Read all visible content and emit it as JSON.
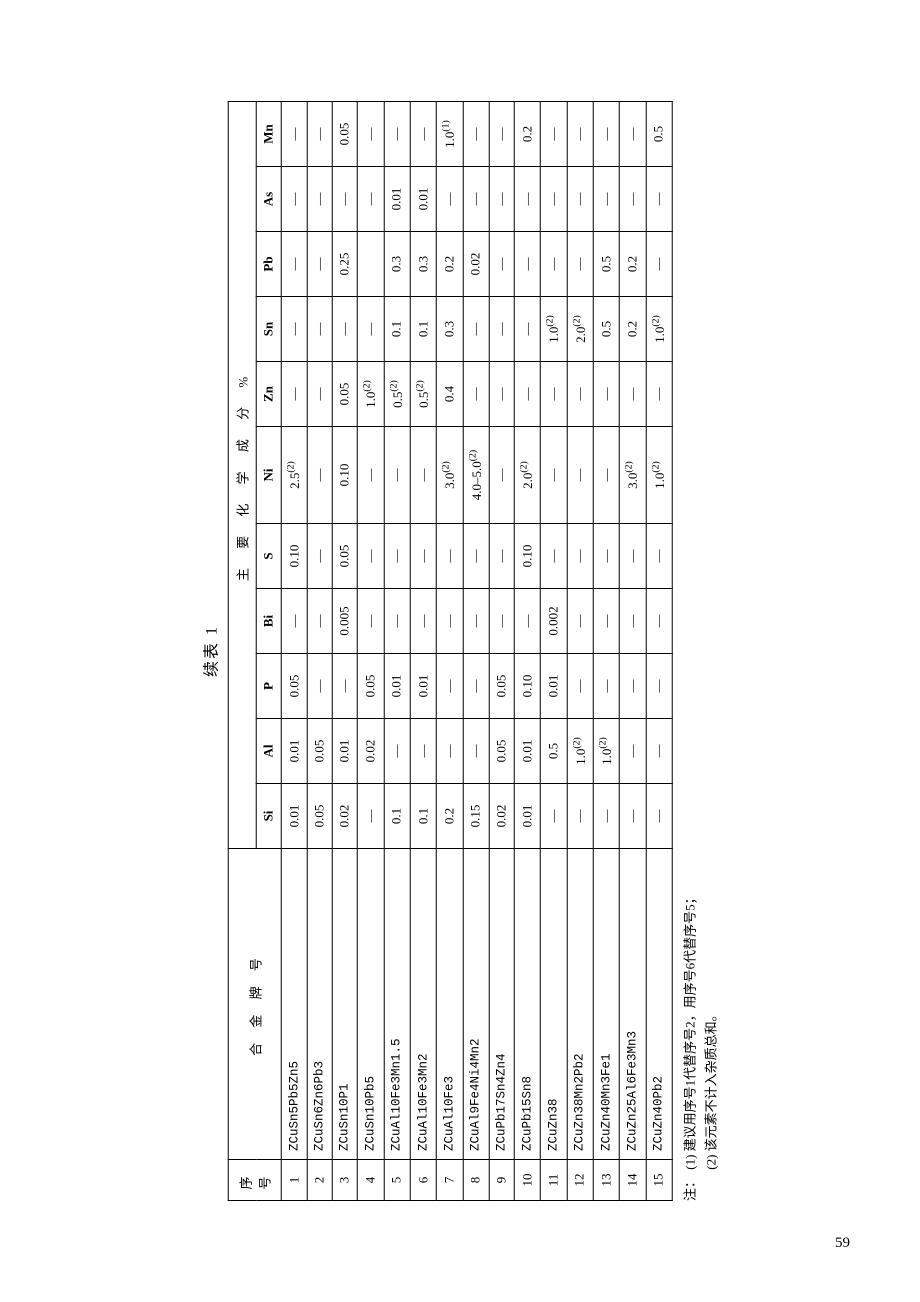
{
  "caption": "续表 1",
  "header": {
    "seq": "序 号",
    "alloy": "合 金 牌 号",
    "group": "主 要 化 学 成 分 %",
    "cols": [
      "Si",
      "Al",
      "P",
      "Bi",
      "S",
      "Ni",
      "Zn",
      "Sn",
      "Pb",
      "As",
      "Mn"
    ]
  },
  "rows": [
    {
      "n": "1",
      "alloy": "ZCuSn5Pb5Zn5",
      "c": [
        "0.01",
        "0.01",
        "0.05",
        "—",
        "0.10",
        "2.5⁽²⁾",
        "—",
        "—",
        "—",
        "—",
        "—"
      ]
    },
    {
      "n": "2",
      "alloy": "ZCuSn6Zn6Pb3",
      "c": [
        "0.05",
        "0.05",
        "—",
        "—",
        "—",
        "—",
        "—",
        "—",
        "—",
        "—",
        "—"
      ]
    },
    {
      "n": "3",
      "alloy": "ZCuSn10P1",
      "c": [
        "0.02",
        "0.01",
        "—",
        "0.005",
        "0.05",
        "0.10",
        "0.05",
        "—",
        "0.25",
        "—",
        "0.05"
      ]
    },
    {
      "n": "4",
      "alloy": "ZCuSn10Pb5",
      "c": [
        "—",
        "0.02",
        "0.05",
        "—",
        "—",
        "—",
        "1.0⁽²⁾",
        "—",
        "",
        "—",
        "—"
      ]
    },
    {
      "n": "5",
      "alloy": "ZCuAl10Fe3Mn1.5",
      "c": [
        "0.1",
        "—",
        "0.01",
        "—",
        "—",
        "—",
        "0.5⁽²⁾",
        "0.1",
        "0.3",
        "0.01",
        "—"
      ]
    },
    {
      "n": "6",
      "alloy": "ZCuAl10Fe3Mn2",
      "c": [
        "0.1",
        "—",
        "0.01",
        "—",
        "—",
        "—",
        "0.5⁽²⁾",
        "0.1",
        "0.3",
        "0.01",
        "—"
      ]
    },
    {
      "n": "7",
      "alloy": "ZCuAl10Fe3",
      "c": [
        "0.2",
        "—",
        "—",
        "—",
        "—",
        "3.0⁽²⁾",
        "0.4",
        "0.3",
        "0.2",
        "—",
        "1.0⁽¹⁾"
      ]
    },
    {
      "n": "8",
      "alloy": "ZCuAl9Fe4Ni4Mn2",
      "c": [
        "0.15",
        "—",
        "—",
        "—",
        "—",
        "4.0–5.0⁽²⁾",
        "—",
        "—",
        "0.02",
        "—",
        "—"
      ]
    },
    {
      "n": "9",
      "alloy": "ZCuPb17Sn4Zn4",
      "c": [
        "0.02",
        "0.05",
        "0.05",
        "—",
        "—",
        "—",
        "—",
        "—",
        "—",
        "—",
        "—"
      ]
    },
    {
      "n": "10",
      "alloy": "ZCuPb15Sn8",
      "c": [
        "0.01",
        "0.01",
        "0.10",
        "—",
        "0.10",
        "2.0⁽²⁾",
        "—",
        "—",
        "—",
        "—",
        "0.2"
      ]
    },
    {
      "n": "11",
      "alloy": "ZCuZn38",
      "c": [
        "—",
        "0.5",
        "0.01",
        "0.002",
        "—",
        "—",
        "—",
        "1.0⁽²⁾",
        "—",
        "—",
        "—"
      ]
    },
    {
      "n": "12",
      "alloy": "ZCuZn38Mn2Pb2",
      "c": [
        "—",
        "1.0⁽²⁾",
        "—",
        "—",
        "—",
        "—",
        "—",
        "2.0⁽²⁾",
        "—",
        "—",
        "—"
      ]
    },
    {
      "n": "13",
      "alloy": "ZCuZn40Mn3Fe1",
      "c": [
        "—",
        "1.0⁽²⁾",
        "—",
        "—",
        "—",
        "—",
        "—",
        "0.5",
        "0.5",
        "—",
        "—"
      ]
    },
    {
      "n": "14",
      "alloy": "ZCuZn25Al6Fe3Mn3",
      "c": [
        "—",
        "—",
        "—",
        "—",
        "—",
        "3.0⁽²⁾",
        "—",
        "0.2",
        "0.2",
        "—",
        "—"
      ]
    },
    {
      "n": "15",
      "alloy": "ZCuZn40Pb2",
      "c": [
        "—",
        "—",
        "—",
        "—",
        "—",
        "1.0⁽²⁾",
        "—",
        "1.0⁽²⁾",
        "—",
        "—",
        "0.5"
      ]
    }
  ],
  "notes": {
    "label": "注：",
    "items": [
      "(1) 建议用序号1代替序号2，用序号6代替序号5；",
      "(2) 该元素不计入杂质总和。"
    ]
  },
  "page_number": "59"
}
